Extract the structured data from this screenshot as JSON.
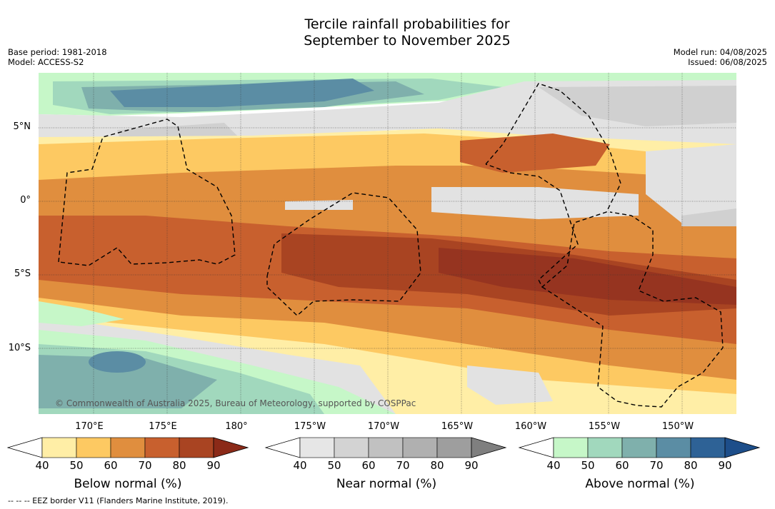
{
  "title_line1": "Tercile rainfall probabilities for",
  "title_line2": "September to November 2025",
  "base_period": "Base period: 1981-2018",
  "model": "Model: ACCESS-S2",
  "model_run": "Model run: 04/08/2025",
  "issued": "Issued: 06/08/2025",
  "copyright": "© Commonwealth of Australia 2025, Bureau of Meteorology, supported by COSPPac",
  "footer": "--  --  -- EEZ border V11 (Flanders Marine Institute, 2019).",
  "lat_labels": [
    "5°N",
    "0°",
    "5°S",
    "10°S"
  ],
  "lon_labels": [
    "170°E",
    "175°E",
    "180°",
    "175°W",
    "170°W",
    "165°W",
    "160°W",
    "155°W",
    "150°W"
  ],
  "colorbars": [
    {
      "label": "Below normal (%)",
      "ticks": [
        "40",
        "50",
        "60",
        "70",
        "80",
        "90"
      ],
      "colors": [
        "#ffffff",
        "#ffeea6",
        "#fdc962",
        "#e08e3e",
        "#c8602e",
        "#a94422",
        "#8b2a18"
      ]
    },
    {
      "label": "Near normal (%)",
      "ticks": [
        "40",
        "50",
        "60",
        "70",
        "80",
        "90"
      ],
      "colors": [
        "#ffffff",
        "#e6e6e6",
        "#d3d3d3",
        "#c1c1c1",
        "#b0b0b0",
        "#9e9e9e",
        "#7f7f7f"
      ]
    },
    {
      "label": "Above normal (%)",
      "ticks": [
        "40",
        "50",
        "60",
        "70",
        "80",
        "90"
      ],
      "colors": [
        "#ffffff",
        "#c6f7c8",
        "#a1d8bd",
        "#7fb0ac",
        "#5b8da4",
        "#2e6296",
        "#1d4e8a"
      ]
    }
  ],
  "map_colors": {
    "ocean": "#ffffff",
    "bn50": "#ffeea6",
    "bn60": "#fdc962",
    "bn70": "#e08e3e",
    "bn80": "#c8602e",
    "bn90": "#a94422",
    "bn95": "#963420",
    "nn50": "#e2e2e2",
    "nn60": "#d0d0d0",
    "nn70": "#bdbdbd",
    "an50": "#c6f7c8",
    "an60": "#a1d8bd",
    "an70": "#7fb0ac",
    "an80": "#5b8da4",
    "an90": "#3a6e98"
  }
}
